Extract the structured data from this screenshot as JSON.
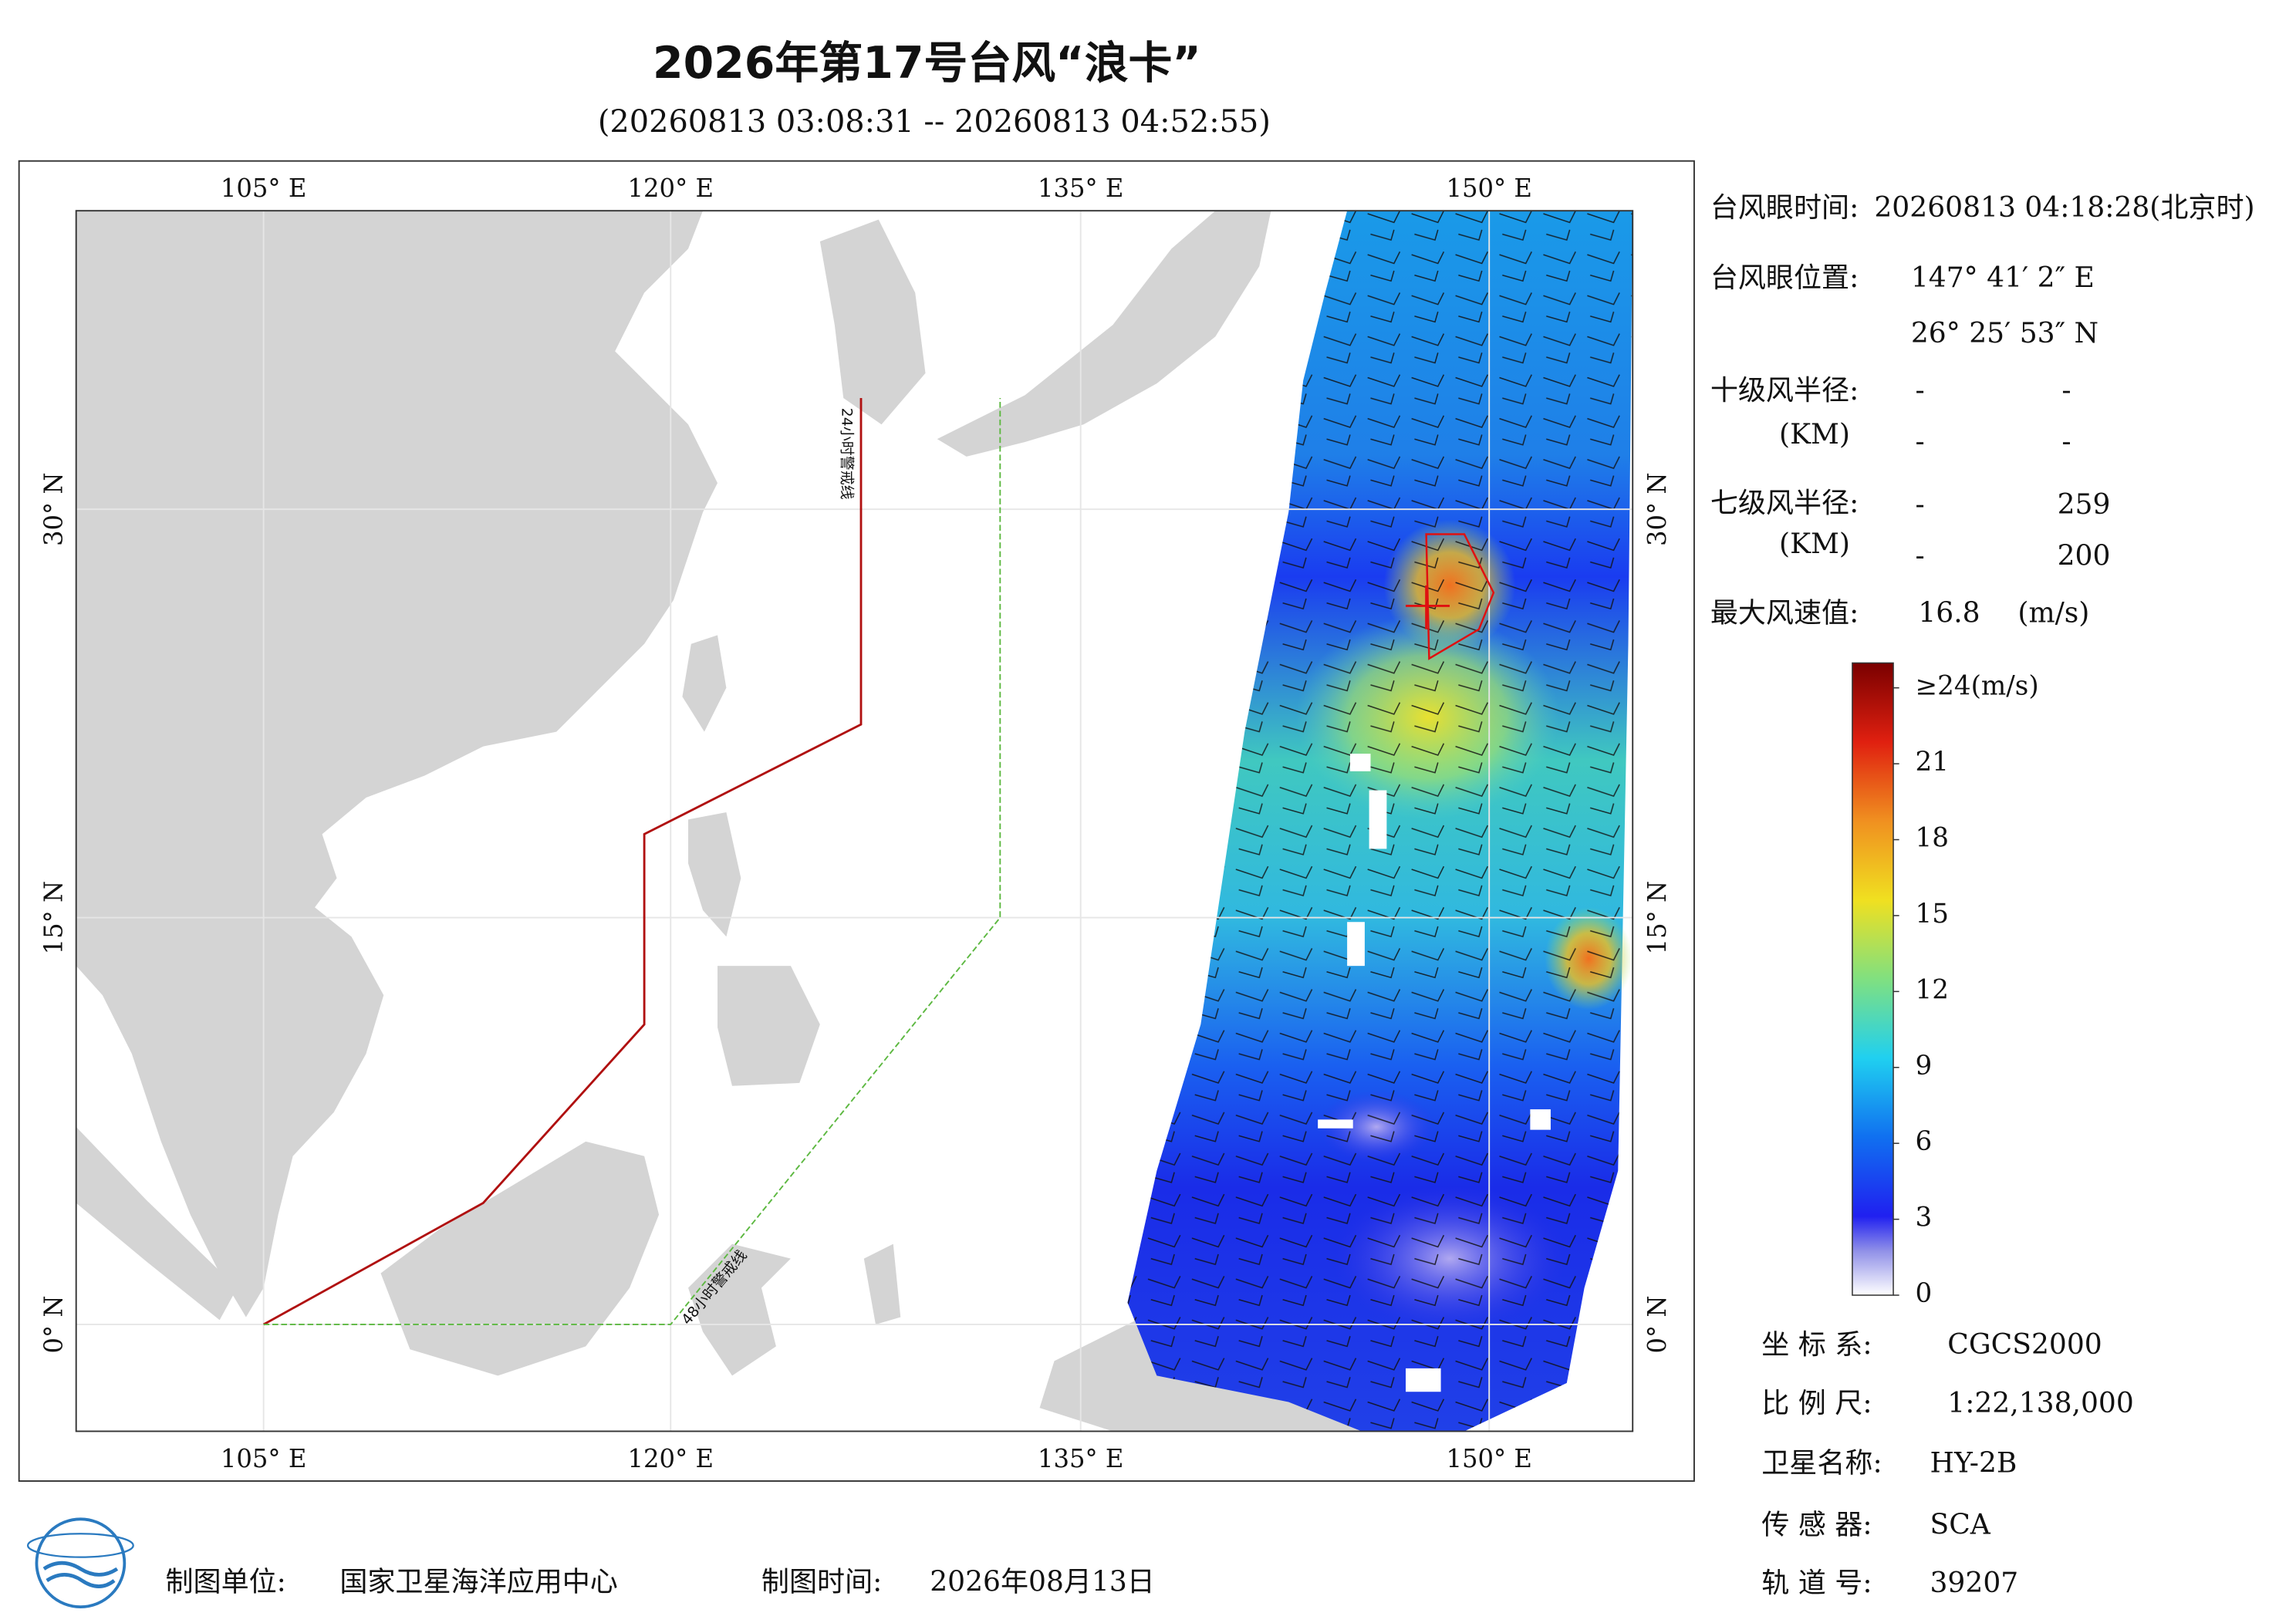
{
  "header": {
    "title": "2026年第17号台风“浪卡”",
    "subtitle": "(20260813 03:08:31 -- 20260813 04:52:55)"
  },
  "map": {
    "lon_labels": [
      "105° E",
      "120° E",
      "135° E",
      "150° E"
    ],
    "lat_labels": [
      "30° N",
      "15° N",
      "0° N"
    ],
    "warning_24h": "24小时警戒线",
    "warning_48h": "48小时警戒线"
  },
  "info": {
    "eye_time_label": "台风眼时间:",
    "eye_time": "20260813 04:18:28(北京时)",
    "eye_position_label": "台风眼位置:",
    "eye_lon": "147° 41′ 2″ E",
    "eye_lat": "26° 25′ 53″ N",
    "radius_10": {
      "label": "十级风半径:",
      "unit": "(KM)",
      "rows": [
        [
          "-",
          "-"
        ],
        [
          "-",
          "-"
        ]
      ]
    },
    "radius_7": {
      "label": "七级风半径:",
      "unit": "(KM)",
      "rows": [
        [
          "-",
          259
        ],
        [
          "-",
          200
        ]
      ]
    },
    "max_wind": {
      "label": "最大风速值:",
      "value": 16.8,
      "unit": "(m/s)"
    }
  },
  "colorbar": {
    "ticks": [
      0,
      3,
      6,
      9,
      12,
      15,
      18,
      21,
      {
        "value": 24,
        "label": "≥24(m/s)"
      }
    ]
  },
  "meta": {
    "crs_label": "坐 标 系:",
    "crs": "CGCS2000",
    "scale_label": "比 例 尺:",
    "scale": "1:22,138,000",
    "satellite_label": "卫星名称:",
    "satellite": "HY-2B",
    "sensor_label": "传 感 器:",
    "sensor": "SCA",
    "orbit_label": "轨 道 号:",
    "orbit": "39207"
  },
  "footer": {
    "producer_label": "制图单位:",
    "producer": "国家卫星海洋应用中心",
    "time_label": "制图时间:",
    "time": "2026年08月13日"
  }
}
